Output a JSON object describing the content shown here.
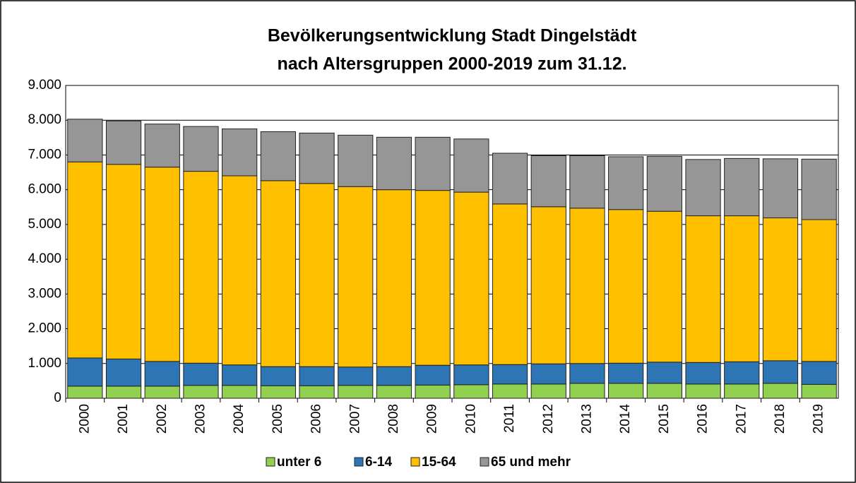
{
  "chart_data": {
    "type": "stacked_bar",
    "title": [
      "Bevölkerungsentwicklung Stadt Dingelstädt",
      "nach Altersgruppen 2000-2019 zum 31.12."
    ],
    "categories": [
      "2000",
      "2001",
      "2002",
      "2003",
      "2004",
      "2005",
      "2006",
      "2007",
      "2008",
      "2009",
      "2010",
      "2011",
      "2012",
      "2013",
      "2014",
      "2015",
      "2016",
      "2017",
      "2018",
      "2019"
    ],
    "series": [
      {
        "name": "unter 6",
        "color": "#92d050",
        "values": [
          350,
          350,
          350,
          370,
          370,
          360,
          360,
          370,
          370,
          380,
          390,
          410,
          410,
          430,
          430,
          430,
          410,
          410,
          430,
          400
        ]
      },
      {
        "name": "6-14",
        "color": "#2e75b6",
        "values": [
          810,
          780,
          710,
          640,
          590,
          550,
          550,
          530,
          540,
          570,
          570,
          560,
          580,
          570,
          580,
          610,
          620,
          640,
          650,
          660
        ]
      },
      {
        "name": "15-64",
        "color": "#ffc000",
        "values": [
          5640,
          5600,
          5590,
          5520,
          5440,
          5350,
          5270,
          5190,
          5090,
          5030,
          4970,
          4620,
          4520,
          4470,
          4420,
          4340,
          4220,
          4200,
          4110,
          4080
        ]
      },
      {
        "name": "65 und mehr",
        "color": "#969696",
        "values": [
          1230,
          1250,
          1240,
          1290,
          1350,
          1410,
          1450,
          1480,
          1510,
          1530,
          1530,
          1460,
          1470,
          1510,
          1520,
          1580,
          1620,
          1650,
          1700,
          1740
        ]
      }
    ],
    "ylim": [
      0,
      9000
    ],
    "yticks": [
      0,
      {
        "value": 1000,
        "label": "1.000"
      },
      {
        "value": 2000,
        "label": "2.000"
      },
      {
        "value": 3000,
        "label": "3.000"
      },
      {
        "value": 4000,
        "label": "4.000"
      },
      {
        "value": 5000,
        "label": "5.000"
      },
      {
        "value": 6000,
        "label": "6.000"
      },
      {
        "value": 7000,
        "label": "7.000"
      },
      {
        "value": 8000,
        "label": "8.000"
      },
      {
        "value": 9000,
        "label": "9.000"
      }
    ],
    "grid": true,
    "legend": "bottom"
  }
}
